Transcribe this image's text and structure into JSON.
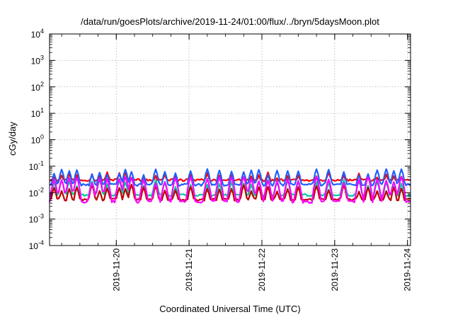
{
  "chart_data": {
    "type": "line",
    "title": "/data/run/goesPlots/archive/2019-11-24/01:00/flux/../bryn/5daysMoon.plot",
    "xlabel": "Coordinated Universal Time (UTC)",
    "ylabel": "cGy/day",
    "yscale": "log",
    "ylim": [
      0.0001,
      10000
    ],
    "xlim": [
      "2019-11-19T02:00",
      "2019-11-24T01:00"
    ],
    "x_ticks": [
      "2019-11-20",
      "2019-11-21",
      "2019-11-22",
      "2019-11-23",
      "2019-11-24"
    ],
    "y_ticks": [
      {
        "base": "10",
        "exp": "-4",
        "value": 0.0001
      },
      {
        "base": "10",
        "exp": "-3",
        "value": 0.001
      },
      {
        "base": "10",
        "exp": "-2",
        "value": 0.01
      },
      {
        "base": "10",
        "exp": "-1",
        "value": 0.1
      },
      {
        "base": "10",
        "exp": "0",
        "value": 1
      },
      {
        "base": "10",
        "exp": "1",
        "value": 10
      },
      {
        "base": "10",
        "exp": "2",
        "value": 100
      },
      {
        "base": "10",
        "exp": "3",
        "value": 1000
      },
      {
        "base": "10",
        "exp": "4",
        "value": 10000
      }
    ],
    "grid": true,
    "legend": "none",
    "series": [
      {
        "color": "#ff0000",
        "baseline": 0.03,
        "spike_peak": 0.06
      },
      {
        "color": "#1f5fff",
        "baseline": 0.02,
        "spike_peak": 0.08
      },
      {
        "color": "#00c8a0",
        "baseline": 0.008,
        "spike_peak": 0.03
      },
      {
        "color": "#c00000",
        "baseline": 0.0055,
        "spike_peak": 0.02
      },
      {
        "color": "#ff00ff",
        "baseline": 0.0045,
        "spike_peak": 0.04
      }
    ],
    "spike_times": [
      "2019-11-19T03:30",
      "2019-11-19T06:00",
      "2019-11-19T08:30",
      "2019-11-19T11:00",
      "2019-11-19T16:00",
      "2019-11-19T18:30",
      "2019-11-19T21:00",
      "2019-11-20T01:00",
      "2019-11-20T03:00",
      "2019-11-20T05:00",
      "2019-11-20T09:00",
      "2019-11-20T13:00",
      "2019-11-20T16:00",
      "2019-11-20T19:30",
      "2019-11-21T00:30",
      "2019-11-21T06:00",
      "2019-11-21T10:00",
      "2019-11-21T14:00",
      "2019-11-21T18:00",
      "2019-11-21T20:30",
      "2019-11-21T23:00",
      "2019-11-22T02:00",
      "2019-11-22T05:00",
      "2019-11-22T08:30",
      "2019-11-22T12:00",
      "2019-11-22T18:00",
      "2019-11-22T22:00",
      "2019-11-23T03:00",
      "2019-11-23T08:00",
      "2019-11-23T11:00",
      "2019-11-23T14:00",
      "2019-11-23T17:00",
      "2019-11-23T19:30",
      "2019-11-23T22:00"
    ]
  }
}
